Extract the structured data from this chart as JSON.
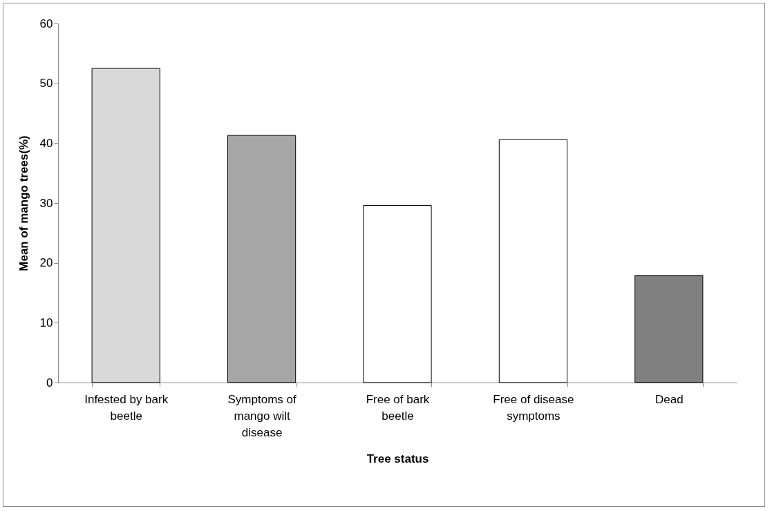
{
  "chart_data": {
    "type": "bar",
    "xlabel": "Tree status",
    "ylabel": "Mean of mango trees(%)",
    "categories": [
      "Infested by bark beetle",
      "Symptoms of mango wilt disease",
      "Free of bark beetle",
      "Free of disease symptoms",
      "Dead"
    ],
    "values": [
      52.5,
      41.3,
      29.6,
      40.6,
      17.9
    ],
    "colors": [
      "#d9d9d9",
      "#a6a6a6",
      "#ffffff",
      "#ffffff",
      "#808080"
    ],
    "ylim": [
      0,
      60
    ],
    "yticks": [
      0,
      10,
      20,
      30,
      40,
      50,
      60
    ],
    "grid": false
  }
}
